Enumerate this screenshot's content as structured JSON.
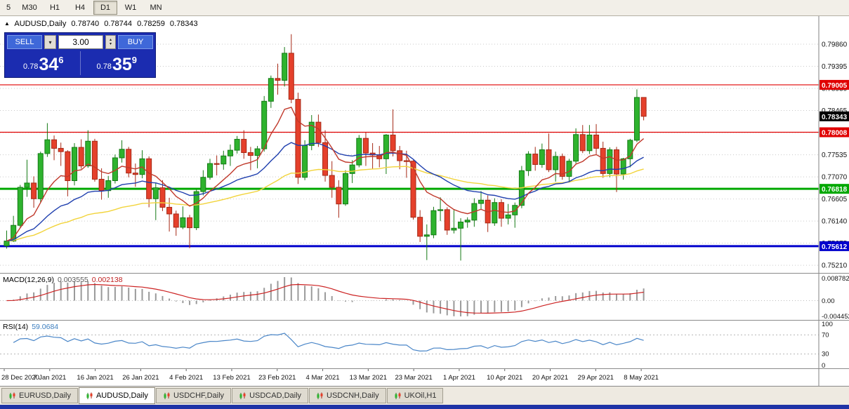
{
  "toolbar": {
    "buttons": [
      {
        "label": "5"
      },
      {
        "label": "M30"
      },
      {
        "label": "H1"
      },
      {
        "label": "H4"
      },
      {
        "label": "D1",
        "active": true
      },
      {
        "label": "W1"
      },
      {
        "label": "MN"
      }
    ]
  },
  "header": {
    "symbol_title": "AUDUSD,Daily",
    "open": "0.78740",
    "high": "0.78744",
    "low": "0.78259",
    "close": "0.78343"
  },
  "trade_panel": {
    "sell_label": "SELL",
    "buy_label": "BUY",
    "volume": "3.00",
    "sell_price": {
      "small": "0.78",
      "big": "34",
      "sup": "6"
    },
    "buy_price": {
      "small": "0.78",
      "big": "35",
      "sup": "9"
    }
  },
  "macd_panel": {
    "name": "MACD(12,26,9)",
    "main_value": "0.003555",
    "signal_value": "0.002138",
    "axis_labels": [
      "0.008782",
      "0.00",
      "-0.004452"
    ]
  },
  "rsi_panel": {
    "name": "RSI(14)",
    "value": "59.0684",
    "axis_labels": [
      "100",
      "70",
      "30",
      "0"
    ],
    "levels": [
      70,
      30
    ]
  },
  "tabs": [
    {
      "label": "EURUSD,Daily"
    },
    {
      "label": "AUDUSD,Daily",
      "active": true
    },
    {
      "label": "USDCHF,Daily"
    },
    {
      "label": "USDCAD,Daily"
    },
    {
      "label": "USDCNH,Daily"
    },
    {
      "label": "UKOil,H1"
    }
  ],
  "colors": {
    "bull": "#2eb32e",
    "bull_border": "#157a15",
    "bear": "#e5402b",
    "bear_border": "#a62916",
    "grid": "#c9c9c9",
    "axis_text": "#111111",
    "macd_hist": "#9a9a9a",
    "macd_signal": "#cc2222",
    "rsi_line": "#4a86c8",
    "panel_blue": "#1b2cb0",
    "button_blue": "#3f68d9",
    "bottom_strip": "#1e33a6"
  },
  "chart_data": {
    "type": "candlestick",
    "symbol": "AUDUSD",
    "timeframe": "Daily",
    "y_range": [
      0.7505,
      0.8045
    ],
    "price_axis_labels": [
      "0.79860",
      "0.79395",
      "0.78930",
      "0.78465",
      "0.78000",
      "0.77535",
      "0.77070",
      "0.76605",
      "0.76140",
      "0.75675",
      "0.75210"
    ],
    "hlines": [
      {
        "price": 0.79005,
        "label": "0.79005",
        "color": "#e00000",
        "width": 1.2
      },
      {
        "price": 0.78008,
        "label": "0.78008",
        "color": "#e00000",
        "width": 1.2
      },
      {
        "price": 0.76818,
        "label": "0.76818",
        "color": "#00a800",
        "width": 3
      },
      {
        "price": 0.75612,
        "label": "0.75612",
        "color": "#0000cc",
        "width": 3
      }
    ],
    "current_price": {
      "value": 0.78343,
      "label": "0.78343",
      "color": "#000000"
    },
    "moving_averages": [
      {
        "period": 9,
        "color": "#c0392b"
      },
      {
        "period": 24,
        "color": "#1f3fae"
      },
      {
        "period": 55,
        "color": "#f2d43c"
      }
    ],
    "indicators": {
      "macd": {
        "fast": 12,
        "slow": 26,
        "signal": 9
      },
      "rsi": {
        "period": 14
      }
    },
    "date_labels": [
      "28 Dec 2020",
      "7 Jan 2021",
      "16 Jan 2021",
      "26 Jan 2021",
      "4 Feb 2021",
      "13 Feb 2021",
      "23 Feb 2021",
      "4 Mar 2021",
      "13 Mar 2021",
      "23 Mar 2021",
      "1 Apr 2021",
      "10 Apr 2021",
      "20 Apr 2021",
      "29 Apr 2021",
      "8 May 2021"
    ],
    "candles_ohlc": [
      [
        0.7562,
        0.7594,
        0.7556,
        0.7572
      ],
      [
        0.7572,
        0.7625,
        0.757,
        0.7605
      ],
      [
        0.7605,
        0.769,
        0.76,
        0.7685
      ],
      [
        0.7685,
        0.7743,
        0.7665,
        0.7694
      ],
      [
        0.7694,
        0.7708,
        0.7642,
        0.7661
      ],
      [
        0.7661,
        0.776,
        0.7653,
        0.7756
      ],
      [
        0.7756,
        0.782,
        0.7749,
        0.7785
      ],
      [
        0.7785,
        0.7794,
        0.7742,
        0.7767
      ],
      [
        0.7767,
        0.7779,
        0.773,
        0.776
      ],
      [
        0.776,
        0.7763,
        0.7666,
        0.7699
      ],
      [
        0.7699,
        0.7778,
        0.7689,
        0.7769
      ],
      [
        0.7769,
        0.7786,
        0.7724,
        0.773
      ],
      [
        0.773,
        0.7805,
        0.7726,
        0.7782
      ],
      [
        0.7782,
        0.7787,
        0.7697,
        0.7702
      ],
      [
        0.7702,
        0.7725,
        0.7659,
        0.7678
      ],
      [
        0.7678,
        0.7709,
        0.7663,
        0.7699
      ],
      [
        0.7699,
        0.7754,
        0.7693,
        0.7747
      ],
      [
        0.7747,
        0.7784,
        0.7737,
        0.7765
      ],
      [
        0.7765,
        0.777,
        0.7706,
        0.7715
      ],
      [
        0.7715,
        0.7735,
        0.7686,
        0.7712
      ],
      [
        0.7712,
        0.7763,
        0.7704,
        0.7745
      ],
      [
        0.7745,
        0.775,
        0.7643,
        0.7661
      ],
      [
        0.7661,
        0.7695,
        0.7616,
        0.7684
      ],
      [
        0.7684,
        0.77,
        0.7635,
        0.7643
      ],
      [
        0.7643,
        0.7663,
        0.7592,
        0.7629
      ],
      [
        0.7629,
        0.7636,
        0.7583,
        0.7601
      ],
      [
        0.7601,
        0.7645,
        0.7597,
        0.7621
      ],
      [
        0.7621,
        0.7627,
        0.7557,
        0.76
      ],
      [
        0.76,
        0.768,
        0.7595,
        0.7676
      ],
      [
        0.7676,
        0.7721,
        0.7668,
        0.7706
      ],
      [
        0.7706,
        0.7745,
        0.7701,
        0.7735
      ],
      [
        0.7735,
        0.7752,
        0.771,
        0.7734
      ],
      [
        0.7734,
        0.7762,
        0.7722,
        0.7751
      ],
      [
        0.7751,
        0.7775,
        0.773,
        0.7763
      ],
      [
        0.7763,
        0.7793,
        0.7756,
        0.7786
      ],
      [
        0.7786,
        0.7805,
        0.7745,
        0.7758
      ],
      [
        0.7758,
        0.777,
        0.7721,
        0.7752
      ],
      [
        0.7752,
        0.7772,
        0.7725,
        0.7766
      ],
      [
        0.7766,
        0.7877,
        0.776,
        0.7866
      ],
      [
        0.7866,
        0.792,
        0.7852,
        0.7914
      ],
      [
        0.7914,
        0.7945,
        0.788,
        0.791
      ],
      [
        0.791,
        0.798,
        0.7897,
        0.7967
      ],
      [
        0.7967,
        0.8007,
        0.7862,
        0.787
      ],
      [
        0.787,
        0.7884,
        0.7692,
        0.7706
      ],
      [
        0.7706,
        0.7784,
        0.77,
        0.7773
      ],
      [
        0.7773,
        0.7837,
        0.7763,
        0.7822
      ],
      [
        0.7822,
        0.7838,
        0.777,
        0.7779
      ],
      [
        0.7779,
        0.7805,
        0.7697,
        0.771
      ],
      [
        0.771,
        0.774,
        0.7663,
        0.7685
      ],
      [
        0.7685,
        0.77,
        0.7621,
        0.765
      ],
      [
        0.765,
        0.7721,
        0.7646,
        0.7714
      ],
      [
        0.7714,
        0.7742,
        0.7694,
        0.7732
      ],
      [
        0.7732,
        0.7795,
        0.7727,
        0.7788
      ],
      [
        0.7788,
        0.78,
        0.773,
        0.7757
      ],
      [
        0.7757,
        0.7778,
        0.7723,
        0.7753
      ],
      [
        0.7753,
        0.7772,
        0.7727,
        0.7745
      ],
      [
        0.7745,
        0.7797,
        0.7713,
        0.7795
      ],
      [
        0.7795,
        0.7849,
        0.775,
        0.7762
      ],
      [
        0.7762,
        0.7772,
        0.7723,
        0.7741
      ],
      [
        0.7741,
        0.7762,
        0.7705,
        0.774
      ],
      [
        0.774,
        0.7742,
        0.7617,
        0.7622
      ],
      [
        0.7622,
        0.7637,
        0.757,
        0.7582
      ],
      [
        0.7582,
        0.7607,
        0.7532,
        0.7585
      ],
      [
        0.7585,
        0.7644,
        0.7578,
        0.7636
      ],
      [
        0.7636,
        0.7664,
        0.7614,
        0.7638
      ],
      [
        0.7638,
        0.7643,
        0.7585,
        0.7595
      ],
      [
        0.7595,
        0.7637,
        0.7588,
        0.7599
      ],
      [
        0.7599,
        0.762,
        0.7531,
        0.7612
      ],
      [
        0.7612,
        0.7622,
        0.76,
        0.7616
      ],
      [
        0.7616,
        0.7662,
        0.7602,
        0.7651
      ],
      [
        0.7651,
        0.7677,
        0.7638,
        0.7658
      ],
      [
        0.7658,
        0.7668,
        0.7591,
        0.761
      ],
      [
        0.761,
        0.7662,
        0.7604,
        0.7653
      ],
      [
        0.7653,
        0.766,
        0.7602,
        0.762
      ],
      [
        0.762,
        0.765,
        0.7607,
        0.7627
      ],
      [
        0.7627,
        0.7653,
        0.76,
        0.7647
      ],
      [
        0.7647,
        0.773,
        0.7641,
        0.772
      ],
      [
        0.772,
        0.7761,
        0.7709,
        0.7755
      ],
      [
        0.7755,
        0.777,
        0.772,
        0.7733
      ],
      [
        0.7733,
        0.7777,
        0.7726,
        0.7764
      ],
      [
        0.7764,
        0.7798,
        0.7717,
        0.7722
      ],
      [
        0.7722,
        0.776,
        0.7697,
        0.775
      ],
      [
        0.775,
        0.7756,
        0.7701,
        0.7708
      ],
      [
        0.7708,
        0.7745,
        0.7695,
        0.774
      ],
      [
        0.774,
        0.7809,
        0.7735,
        0.7796
      ],
      [
        0.7796,
        0.7816,
        0.7757,
        0.7762
      ],
      [
        0.7762,
        0.7816,
        0.7755,
        0.7795
      ],
      [
        0.7795,
        0.7818,
        0.7755,
        0.7767
      ],
      [
        0.7767,
        0.7781,
        0.7705,
        0.7714
      ],
      [
        0.7714,
        0.7769,
        0.7706,
        0.7764
      ],
      [
        0.7764,
        0.777,
        0.7675,
        0.7713
      ],
      [
        0.7713,
        0.7747,
        0.7701,
        0.7745
      ],
      [
        0.7745,
        0.7787,
        0.7727,
        0.7784
      ],
      [
        0.7784,
        0.7891,
        0.778,
        0.7874
      ],
      [
        0.7874,
        0.78744,
        0.78259,
        0.78343
      ]
    ]
  }
}
